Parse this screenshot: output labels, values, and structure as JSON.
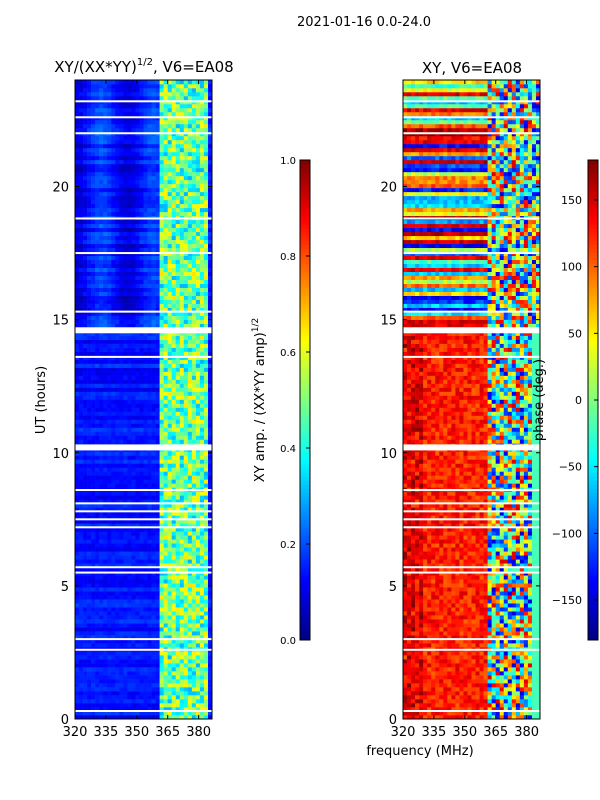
{
  "suptitle": "2021-01-16 0.0-24.0",
  "chart_data": [
    {
      "type": "heatmap",
      "title": "XY/(XX*YY)",
      "title_exponent": "1/2",
      "title_suffix": ", V6=EA08",
      "xlabel": "",
      "ylabel": "UT (hours)",
      "xlim": [
        320,
        386.5
      ],
      "ylim": [
        0,
        24
      ],
      "xticks": [
        "320",
        "335",
        "350",
        "365",
        "380"
      ],
      "yticks": [
        "0",
        "5",
        "10",
        "15",
        "20"
      ],
      "colormap": "jet",
      "colorbar": {
        "label": "XY amp. / (XX*YY amp)",
        "label_exponent": "1/2",
        "range": [
          0.0,
          1.0
        ],
        "ticks": [
          "0.0",
          "0.2",
          "0.4",
          "0.6",
          "0.8",
          "1.0"
        ]
      },
      "typical_values": {
        "below_362MHz": 0.1,
        "362_to_384MHz": 0.45
      }
    },
    {
      "type": "heatmap",
      "title": "XY, V6=EA08",
      "xlabel": "frequency (MHz)",
      "ylabel": "",
      "xlim": [
        320,
        386.5
      ],
      "ylim": [
        0,
        24
      ],
      "xticks": [
        "320",
        "335",
        "350",
        "365",
        "380"
      ],
      "yticks": [
        "0",
        "5",
        "10",
        "15",
        "20"
      ],
      "colormap": "jet",
      "colorbar": {
        "label": "phase (deg.)",
        "range": [
          -180,
          180
        ],
        "ticks": [
          "−150",
          "−100",
          "−50",
          "0",
          "50",
          "100",
          "150"
        ]
      },
      "typical_values": {
        "0_to_14.5h_below_362MHz": 120,
        "above_362MHz": -60
      }
    }
  ],
  "flagged_gap_hours": [
    0.3,
    2.6,
    3.0,
    5.5,
    5.7,
    7.2,
    7.5,
    7.8,
    8.1,
    8.6,
    10.2,
    13.6,
    14.6,
    15.3,
    17.5,
    18.8,
    22.0,
    22.6,
    23.2
  ]
}
